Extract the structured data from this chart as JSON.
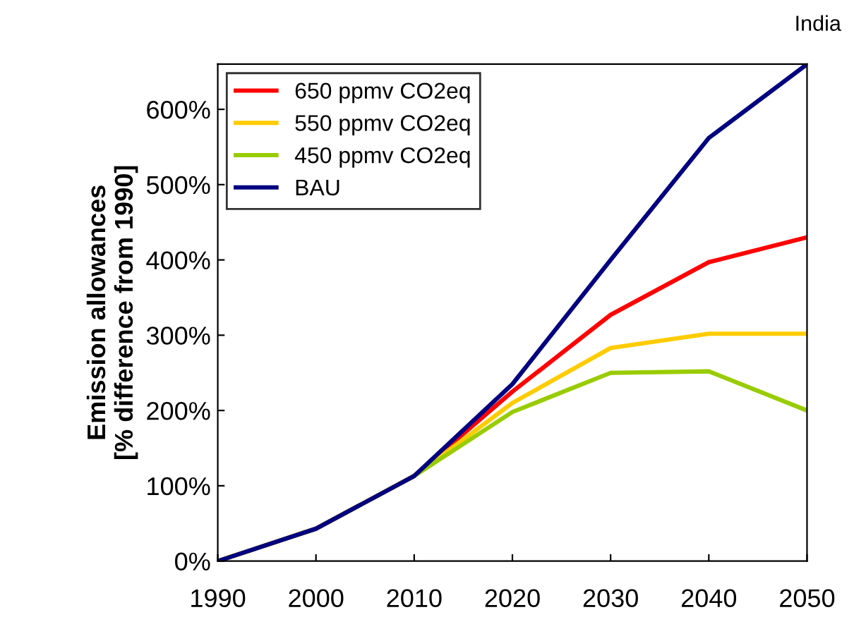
{
  "chart_data": {
    "type": "line",
    "title": "India",
    "ylabel": "Emission allowances\n[% difference from 1990]",
    "x": [
      1990,
      2000,
      2010,
      2020,
      2030,
      2040,
      2050
    ],
    "series": [
      {
        "name": "650 ppmv CO2eq",
        "color": "#ff0000",
        "values": [
          0,
          43,
          113,
          225,
          327,
          397,
          430
        ]
      },
      {
        "name": "550 ppmv CO2eq",
        "color": "#ffcc00",
        "values": [
          0,
          43,
          113,
          210,
          283,
          302,
          302
        ]
      },
      {
        "name": "450 ppmv CO2eq",
        "color": "#99cc00",
        "values": [
          0,
          43,
          113,
          198,
          250,
          252,
          200
        ]
      },
      {
        "name": "BAU",
        "color": "#000080",
        "values": [
          0,
          43,
          113,
          235,
          400,
          562,
          660
        ]
      }
    ],
    "xlim": [
      1990,
      2050
    ],
    "xticks": [
      1990,
      2000,
      2010,
      2020,
      2030,
      2040,
      2050
    ],
    "ylim": [
      0,
      660
    ],
    "yticks": [
      {
        "value": 0,
        "label": "0%"
      },
      {
        "value": 100,
        "label": "100%"
      },
      {
        "value": 200,
        "label": "200%"
      },
      {
        "value": 300,
        "label": "300%"
      },
      {
        "value": 400,
        "label": "400%"
      },
      {
        "value": 500,
        "label": "500%"
      },
      {
        "value": 600,
        "label": "600%"
      }
    ],
    "legend": "top left",
    "grid": false,
    "marker": "none",
    "line_style": "solid"
  }
}
